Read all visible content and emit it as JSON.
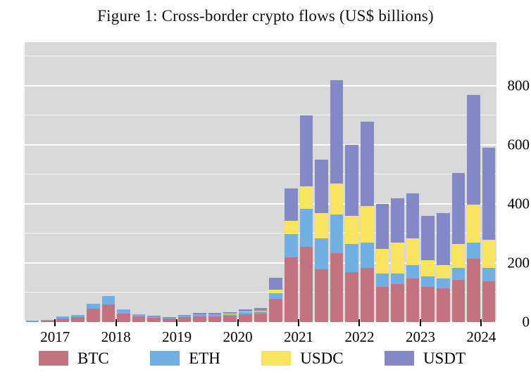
{
  "figure": {
    "title": "Figure 1: Cross-border crypto flows (US$ billions)"
  },
  "chart_data": {
    "type": "bar",
    "stacked": true,
    "title": "Figure 1: Cross-border crypto flows (US$ billions)",
    "unit": "US$ billions",
    "categories": [
      "2016Q3",
      "2016Q4",
      "2017Q1",
      "2017Q2",
      "2017Q3",
      "2017Q4",
      "2018Q1",
      "2018Q2",
      "2018Q3",
      "2018Q4",
      "2019Q1",
      "2019Q2",
      "2019Q3",
      "2019Q4",
      "2020Q1",
      "2020Q2",
      "2020Q3",
      "2020Q4",
      "2021Q1",
      "2021Q2",
      "2021Q3",
      "2021Q4",
      "2022Q1",
      "2022Q2",
      "2022Q3",
      "2022Q4",
      "2023Q1",
      "2023Q2",
      "2023Q3",
      "2023Q4",
      "2024Q1"
    ],
    "series": [
      {
        "name": "BTC",
        "color": "#c3737f",
        "values": [
          3,
          6,
          14,
          19,
          46,
          60,
          30,
          20,
          16,
          12,
          17,
          21,
          21,
          22,
          28,
          30,
          80,
          220,
          255,
          180,
          235,
          170,
          185,
          120,
          130,
          150,
          120,
          115,
          145,
          215,
          140
        ]
      },
      {
        "name": "ETH",
        "color": "#6fafe1",
        "values": [
          1,
          1,
          4,
          6,
          16,
          28,
          12,
          7,
          5,
          4,
          5,
          6,
          6,
          6,
          7,
          8,
          20,
          80,
          130,
          105,
          130,
          95,
          85,
          45,
          35,
          45,
          35,
          35,
          40,
          55,
          45
        ]
      },
      {
        "name": "USDC",
        "color": "#f8e45f",
        "values": [
          0,
          0,
          0,
          0,
          0,
          0,
          0,
          0,
          0,
          0,
          0,
          0,
          1,
          1,
          1,
          2,
          10,
          45,
          75,
          85,
          105,
          95,
          125,
          85,
          105,
          90,
          55,
          45,
          80,
          130,
          95
        ]
      },
      {
        "name": "USDT",
        "color": "#8289c6",
        "values": [
          0,
          0,
          0,
          0,
          0,
          0,
          0,
          0,
          1,
          1,
          2,
          3,
          3,
          4,
          7,
          8,
          40,
          107,
          240,
          180,
          350,
          240,
          285,
          150,
          150,
          150,
          150,
          175,
          240,
          370,
          310
        ]
      }
    ],
    "totals": [
      4,
      7,
      18,
      25,
      62,
      88,
      42,
      27,
      22,
      17,
      24,
      30,
      31,
      33,
      43,
      48,
      150,
      452,
      700,
      550,
      820,
      600,
      680,
      400,
      420,
      435,
      360,
      370,
      505,
      770,
      590
    ],
    "ylim": [
      0,
      948
    ],
    "yticks": [
      0,
      200,
      400,
      600,
      800
    ],
    "yticks_minor": [
      100,
      300,
      500,
      700,
      900
    ],
    "yaxis_side": "right",
    "xticks": [
      {
        "label": "2017",
        "boundary_index": 2
      },
      {
        "label": "2018",
        "boundary_index": 6
      },
      {
        "label": "2019",
        "boundary_index": 10
      },
      {
        "label": "2020",
        "boundary_index": 14
      },
      {
        "label": "2021",
        "boundary_index": 18
      },
      {
        "label": "2022",
        "boundary_index": 22
      },
      {
        "label": "2023",
        "boundary_index": 26
      },
      {
        "label": "2024",
        "boundary_index": 30
      }
    ],
    "legend": [
      "BTC",
      "ETH",
      "USDC",
      "USDT"
    ],
    "legend_position": "bottom",
    "grid": true,
    "panel_color": "#d9d9d9"
  }
}
